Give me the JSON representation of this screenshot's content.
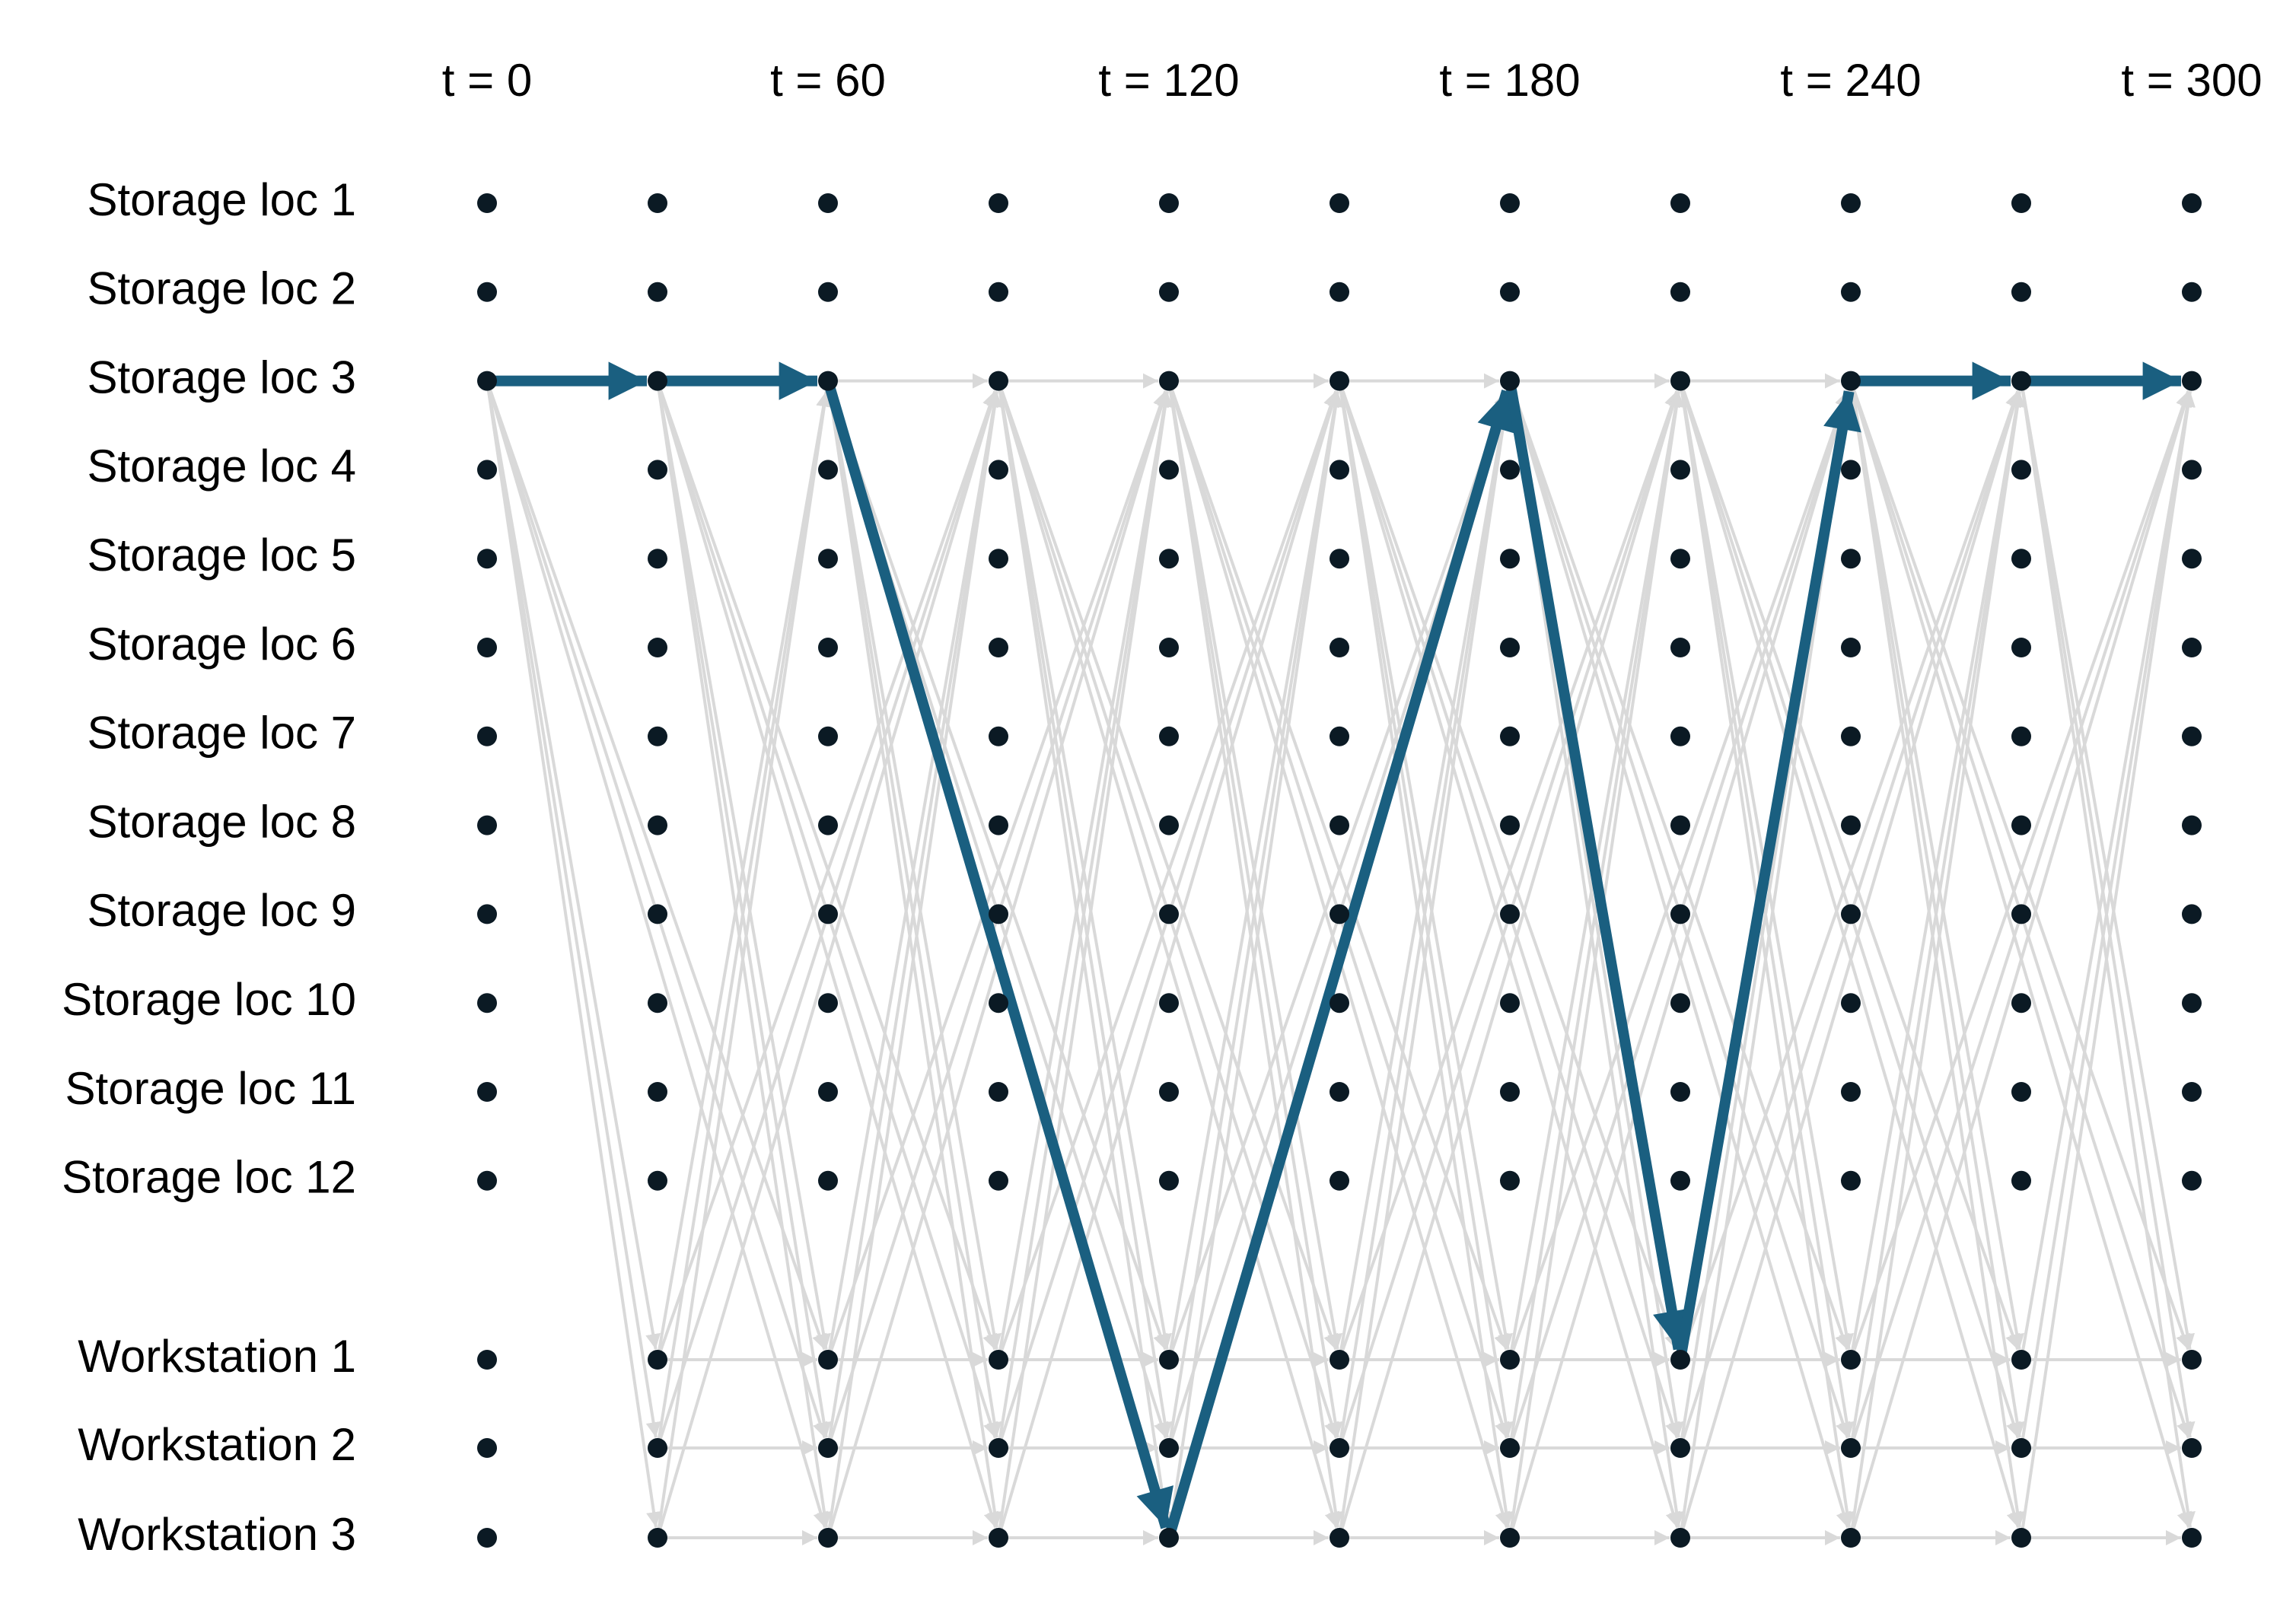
{
  "header": {
    "times": [
      "t = 0",
      "t = 60",
      "t = 120",
      "t = 180",
      "t = 240",
      "t = 300"
    ]
  },
  "rows": [
    "Storage loc 1",
    "Storage loc 2",
    "Storage loc 3",
    "Storage loc 4",
    "Storage loc 5",
    "Storage loc 6",
    "Storage loc 7",
    "Storage loc 8",
    "Storage loc 9",
    "Storage loc 10",
    "Storage loc 11",
    "Storage loc 12",
    "Workstation 1",
    "Workstation 2",
    "Workstation 3"
  ]
}
